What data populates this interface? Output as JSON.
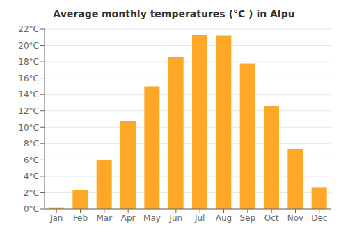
{
  "chart_data": {
    "type": "bar",
    "title": "Average monthly temperatures (°C ) in Alpu",
    "categories": [
      "Jan",
      "Feb",
      "Mar",
      "Apr",
      "May",
      "Jun",
      "Jul",
      "Aug",
      "Sep",
      "Oct",
      "Nov",
      "Dec"
    ],
    "values": [
      0.2,
      2.3,
      6.0,
      10.7,
      15.0,
      18.6,
      21.3,
      21.2,
      17.8,
      12.6,
      7.3,
      2.6
    ],
    "color": "#FFA726",
    "ylim": [
      0,
      22
    ],
    "yticks": [
      {
        "value": 0,
        "label": "0°C"
      },
      {
        "value": 2,
        "label": "2°C"
      },
      {
        "value": 4,
        "label": "4°C"
      },
      {
        "value": 6,
        "label": "6°C"
      },
      {
        "value": 8,
        "label": "8°C"
      },
      {
        "value": 10,
        "label": "10°C"
      },
      {
        "value": 12,
        "label": "12°C"
      },
      {
        "value": 14,
        "label": "14°C"
      },
      {
        "value": 16,
        "label": "16°C"
      },
      {
        "value": 18,
        "label": "18°C"
      },
      {
        "value": 20,
        "label": "20°C"
      },
      {
        "value": 22,
        "label": "22°C"
      }
    ],
    "grid": true
  }
}
